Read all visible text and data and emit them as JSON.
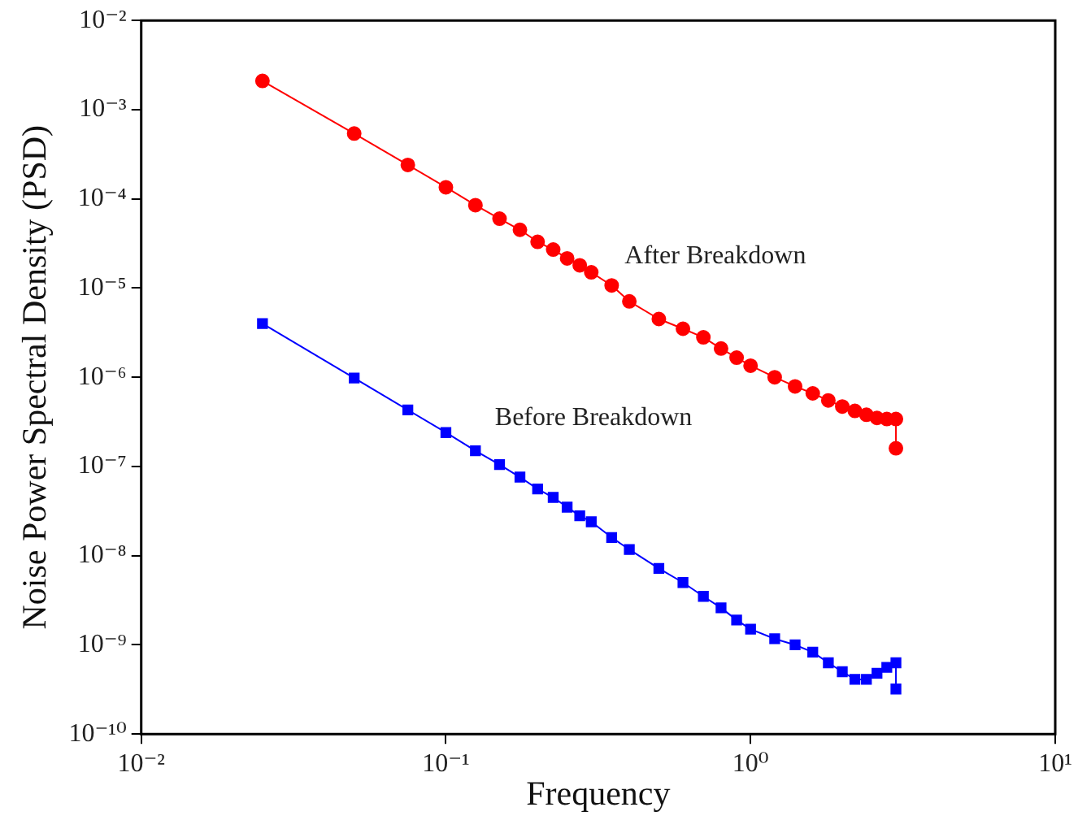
{
  "chart_data": {
    "type": "line",
    "xlabel": "Frequency",
    "ylabel": "Noise Power Spectral Density (PSD)",
    "log": "xy",
    "grid": false,
    "legend": false,
    "xlim": [
      0.01,
      10
    ],
    "ylim": [
      1e-10,
      0.01
    ],
    "xticks": [
      {
        "value": 0.01,
        "label": "10⁻²"
      },
      {
        "value": 0.1,
        "label": "10⁻¹"
      },
      {
        "value": 1,
        "label": "10⁰"
      },
      {
        "value": 10,
        "label": "10¹"
      }
    ],
    "yticks": [
      {
        "value": 1e-10,
        "label": "10⁻¹⁰"
      },
      {
        "value": 1e-09,
        "label": "10⁻⁹"
      },
      {
        "value": 1e-08,
        "label": "10⁻⁸"
      },
      {
        "value": 1e-07,
        "label": "10⁻⁷"
      },
      {
        "value": 1e-06,
        "label": "10⁻⁶"
      },
      {
        "value": 1e-05,
        "label": "10⁻⁵"
      },
      {
        "value": 0.0001,
        "label": "10⁻⁴"
      },
      {
        "value": 0.001,
        "label": "10⁻³"
      },
      {
        "value": 0.01,
        "label": "10⁻²"
      }
    ],
    "series": [
      {
        "name": "After Breakdown",
        "color": "#ff0000",
        "marker": "circle",
        "x": [
          0.025,
          0.05,
          0.075,
          0.1,
          0.125,
          0.15,
          0.175,
          0.2,
          0.225,
          0.25,
          0.275,
          0.3,
          0.35,
          0.4,
          0.5,
          0.6,
          0.7,
          0.8,
          0.9,
          1.0,
          1.2,
          1.4,
          1.6,
          1.8,
          2.0,
          2.2,
          2.4,
          2.6,
          2.8,
          3.0,
          3.0
        ],
        "values": [
          0.0021,
          0.00054,
          0.00024,
          0.000135,
          8.5e-05,
          6e-05,
          4.5e-05,
          3.3e-05,
          2.7e-05,
          2.15e-05,
          1.8e-05,
          1.5e-05,
          1.07e-05,
          7.1e-06,
          4.5e-06,
          3.5e-06,
          2.8e-06,
          2.1e-06,
          1.66e-06,
          1.35e-06,
          1e-06,
          7.9e-07,
          6.6e-07,
          5.5e-07,
          4.7e-07,
          4.2e-07,
          3.8e-07,
          3.5e-07,
          3.4e-07,
          3.4e-07,
          1.6e-07
        ]
      },
      {
        "name": "Before Breakdown",
        "color": "#0000ff",
        "marker": "square",
        "x": [
          0.025,
          0.05,
          0.075,
          0.1,
          0.125,
          0.15,
          0.175,
          0.2,
          0.225,
          0.25,
          0.275,
          0.3,
          0.35,
          0.4,
          0.5,
          0.6,
          0.7,
          0.8,
          0.9,
          1.0,
          1.2,
          1.4,
          1.6,
          1.8,
          2.0,
          2.2,
          2.4,
          2.6,
          2.8,
          3.0,
          3.0
        ],
        "values": [
          4e-06,
          9.8e-07,
          4.3e-07,
          2.4e-07,
          1.5e-07,
          1.05e-07,
          7.6e-08,
          5.6e-08,
          4.5e-08,
          3.5e-08,
          2.8e-08,
          2.4e-08,
          1.6e-08,
          1.17e-08,
          7.2e-09,
          5e-09,
          3.5e-09,
          2.6e-09,
          1.9e-09,
          1.5e-09,
          1.17e-09,
          1e-09,
          8.3e-10,
          6.3e-10,
          5e-10,
          4.1e-10,
          4.1e-10,
          4.8e-10,
          5.6e-10,
          6.3e-10,
          3.2e-10
        ]
      }
    ]
  }
}
